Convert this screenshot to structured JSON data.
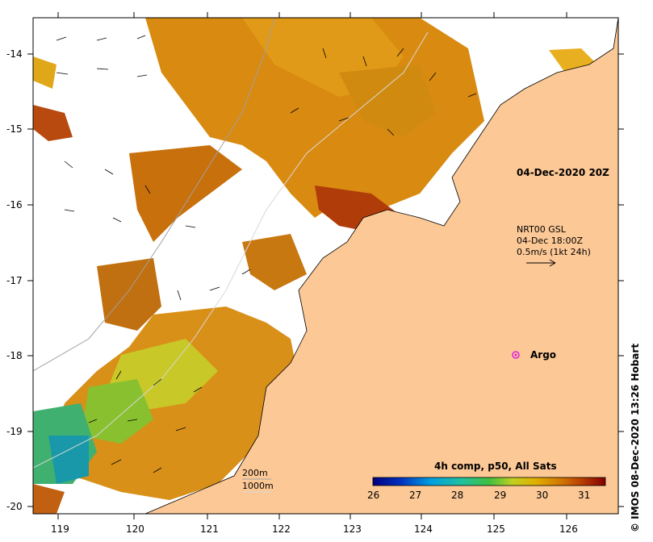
{
  "map": {
    "timestamp_label": "04-Dec-2020 20Z",
    "currents": {
      "product": "NRT00 GSL",
      "time": "04-Dec 18:00Z",
      "scale": "0.5m/s (1kt 24h)"
    },
    "argo_label": "Argo",
    "depth_contours": {
      "c1": "200m",
      "c2": "1000m"
    },
    "colorbar": {
      "title": "4h comp, p50, All Sats",
      "ticks": [
        "26",
        "27",
        "28",
        "29",
        "30",
        "31"
      ]
    },
    "lat_ticks": [
      "-14",
      "-15",
      "-16",
      "-17",
      "-18",
      "-19",
      "-20"
    ],
    "lon_ticks": [
      "119",
      "120",
      "121",
      "122",
      "123",
      "124",
      "125",
      "126"
    ],
    "credit": "© IMOS 08-Dec-2020 13:26 Hobart",
    "colors": {
      "land": "#fcc896",
      "argo": "#e020e0"
    }
  }
}
